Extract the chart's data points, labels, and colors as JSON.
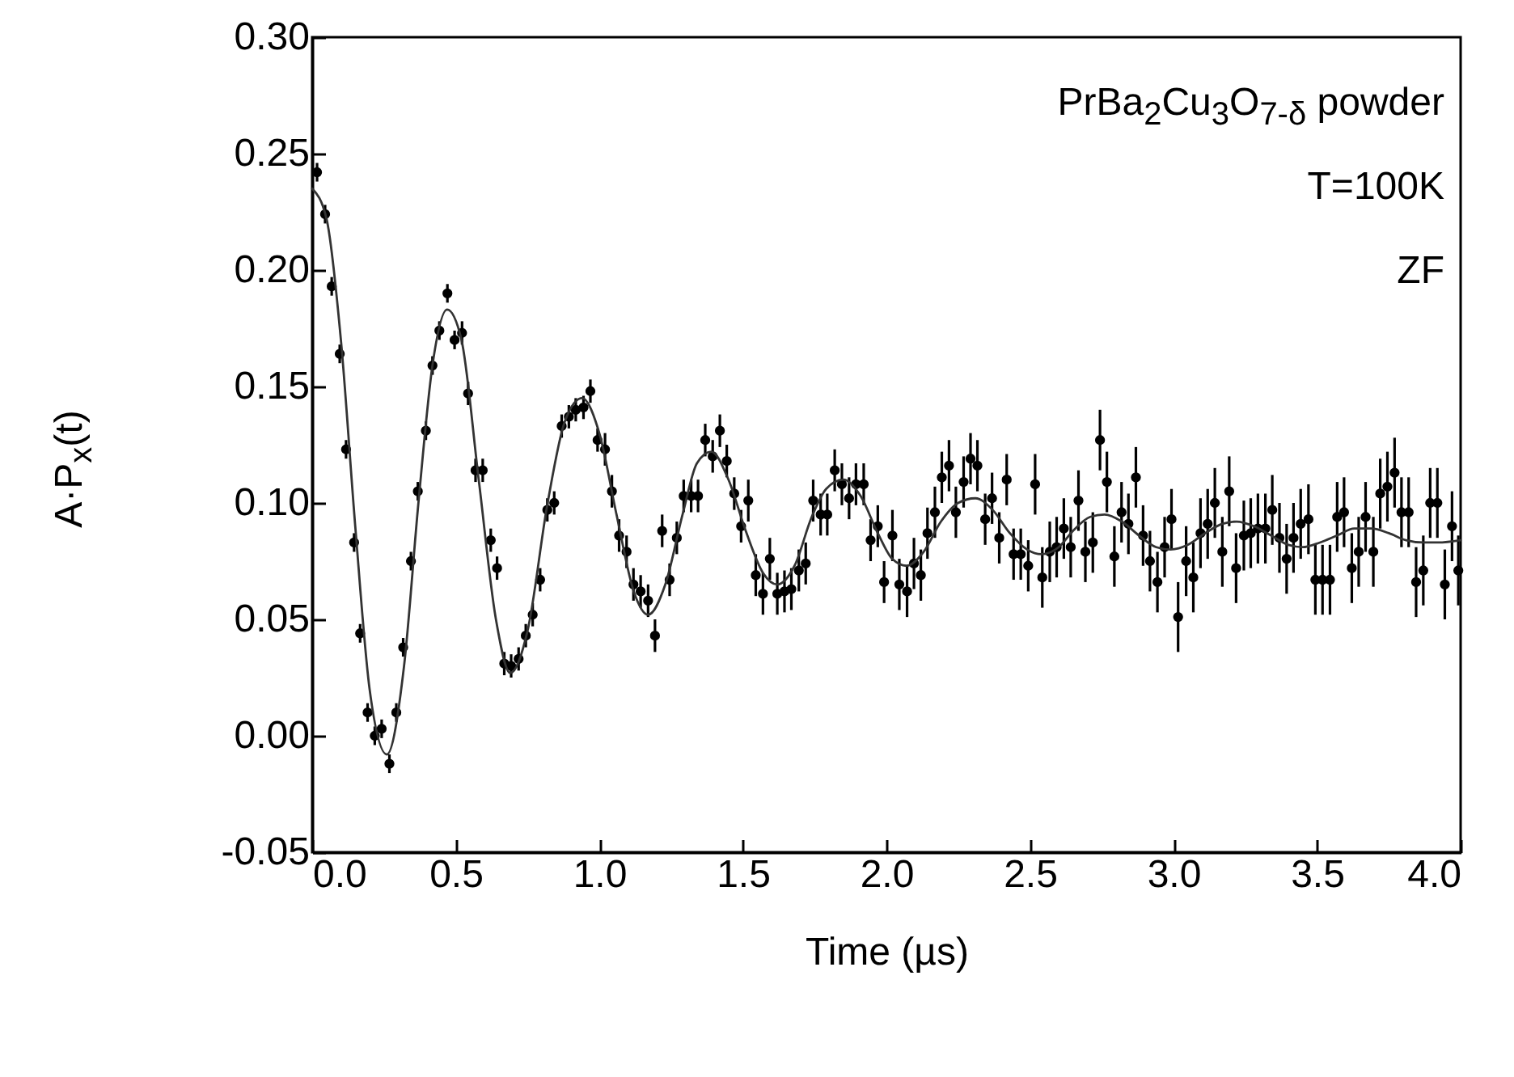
{
  "chart_data": {
    "type": "scatter",
    "xlabel": "Time (µs)",
    "ylabel": "A·P$_{x}$(t)",
    "annotations": [
      "PrBa$_{2}$Cu$_{3}$O$_{7-δ}$ powder",
      "T=100K",
      "ZF"
    ],
    "xlim": [
      0,
      4
    ],
    "ylim": [
      -0.05,
      0.3
    ],
    "xticks": [
      {
        "value": 0,
        "label": "0.0"
      },
      {
        "value": 0.5,
        "label": "0.5"
      },
      {
        "value": 1,
        "label": "1.0"
      },
      {
        "value": 1.5,
        "label": "1.5"
      },
      {
        "value": 2,
        "label": "2.0"
      },
      {
        "value": 2.5,
        "label": "2.5"
      },
      {
        "value": 3,
        "label": "3.0"
      },
      {
        "value": 3.5,
        "label": "3.5"
      },
      {
        "value": 4,
        "label": "4.0"
      }
    ],
    "yticks": [
      {
        "value": -0.05,
        "label": "-0.05"
      },
      {
        "value": 0,
        "label": "0.00"
      },
      {
        "value": 0.05,
        "label": "0.05"
      },
      {
        "value": 0.1,
        "label": "0.10"
      },
      {
        "value": 0.15,
        "label": "0.15"
      },
      {
        "value": 0.2,
        "label": "0.20"
      },
      {
        "value": 0.25,
        "label": "0.25"
      },
      {
        "value": 0.3,
        "label": "0.30"
      }
    ],
    "series": [
      {
        "marker": "circle",
        "color": "#000000",
        "x": [
          0.017,
          0.045,
          0.068,
          0.096,
          0.118,
          0.146,
          0.167,
          0.193,
          0.218,
          0.242,
          0.269,
          0.293,
          0.317,
          0.344,
          0.368,
          0.396,
          0.419,
          0.443,
          0.471,
          0.496,
          0.522,
          0.543,
          0.569,
          0.594,
          0.622,
          0.644,
          0.669,
          0.693,
          0.719,
          0.744,
          0.768,
          0.794,
          0.819,
          0.843,
          0.869,
          0.894,
          0.918,
          0.945,
          0.969,
          0.994,
          1.02,
          1.044,
          1.069,
          1.095,
          1.119,
          1.144,
          1.17,
          1.194,
          1.219,
          1.245,
          1.27,
          1.294,
          1.32,
          1.344,
          1.369,
          1.395,
          1.42,
          1.444,
          1.47,
          1.494,
          1.519,
          1.545,
          1.57,
          1.594,
          1.62,
          1.645,
          1.669,
          1.695,
          1.719,
          1.745,
          1.771,
          1.794,
          1.82,
          1.845,
          1.87,
          1.894,
          1.921,
          1.945,
          1.97,
          1.992,
          2.021,
          2.045,
          2.072,
          2.096,
          2.12,
          2.143,
          2.169,
          2.193,
          2.218,
          2.242,
          2.269,
          2.293,
          2.317,
          2.344,
          2.368,
          2.393,
          2.419,
          2.443,
          2.468,
          2.494,
          2.518,
          2.543,
          2.569,
          2.593,
          2.618,
          2.642,
          2.669,
          2.693,
          2.719,
          2.744,
          2.768,
          2.794,
          2.819,
          2.843,
          2.869,
          2.894,
          2.918,
          2.944,
          2.969,
          2.993,
          3.016,
          3.044,
          3.069,
          3.094,
          3.119,
          3.144,
          3.17,
          3.194,
          3.218,
          3.245,
          3.269,
          3.294,
          3.32,
          3.344,
          3.369,
          3.394,
          3.418,
          3.443,
          3.47,
          3.494,
          3.519,
          3.545,
          3.57,
          3.594,
          3.621,
          3.645,
          3.669,
          3.696,
          3.72,
          3.745,
          3.77,
          3.794,
          3.819,
          3.845,
          3.87,
          3.894,
          3.919,
          3.945,
          3.97,
          3.992
        ],
        "values": [
          0.242,
          0.224,
          0.193,
          0.164,
          0.123,
          0.083,
          0.044,
          0.01,
          0.0,
          0.003,
          -0.012,
          0.01,
          0.038,
          0.075,
          0.105,
          0.131,
          0.159,
          0.174,
          0.19,
          0.17,
          0.173,
          0.147,
          0.114,
          0.114,
          0.084,
          0.072,
          0.031,
          0.03,
          0.033,
          0.043,
          0.052,
          0.067,
          0.097,
          0.1,
          0.133,
          0.137,
          0.14,
          0.141,
          0.148,
          0.127,
          0.123,
          0.105,
          0.086,
          0.079,
          0.065,
          0.062,
          0.058,
          0.043,
          0.088,
          0.067,
          0.085,
          0.103,
          0.103,
          0.103,
          0.127,
          0.12,
          0.131,
          0.118,
          0.104,
          0.09,
          0.101,
          0.069,
          0.061,
          0.076,
          0.061,
          0.062,
          0.063,
          0.071,
          0.074,
          0.101,
          0.095,
          0.095,
          0.114,
          0.108,
          0.102,
          0.108,
          0.108,
          0.084,
          0.09,
          0.066,
          0.086,
          0.065,
          0.062,
          0.074,
          0.069,
          0.087,
          0.096,
          0.111,
          0.116,
          0.096,
          0.109,
          0.119,
          0.116,
          0.093,
          0.102,
          0.085,
          0.11,
          0.078,
          0.078,
          0.073,
          0.108,
          0.068,
          0.079,
          0.081,
          0.089,
          0.081,
          0.101,
          0.079,
          0.083,
          0.127,
          0.109,
          0.077,
          0.096,
          0.091,
          0.111,
          0.086,
          0.075,
          0.066,
          0.081,
          0.093,
          0.051,
          0.075,
          0.068,
          0.087,
          0.091,
          0.1,
          0.079,
          0.105,
          0.072,
          0.086,
          0.087,
          0.089,
          0.089,
          0.097,
          0.085,
          0.076,
          0.085,
          0.091,
          0.093,
          0.067,
          0.067,
          0.067,
          0.094,
          0.096,
          0.072,
          0.079,
          0.094,
          0.079,
          0.104,
          0.107,
          0.113,
          0.096,
          0.096,
          0.066,
          0.071,
          0.1,
          0.1,
          0.065,
          0.09,
          0.071
        ],
        "errors": [
          0.004,
          0.004,
          0.004,
          0.004,
          0.004,
          0.004,
          0.004,
          0.004,
          0.004,
          0.004,
          0.004,
          0.004,
          0.004,
          0.004,
          0.004,
          0.004,
          0.004,
          0.004,
          0.004,
          0.004,
          0.005,
          0.005,
          0.005,
          0.005,
          0.005,
          0.005,
          0.005,
          0.005,
          0.005,
          0.005,
          0.005,
          0.005,
          0.005,
          0.005,
          0.005,
          0.005,
          0.005,
          0.005,
          0.005,
          0.005,
          0.007,
          0.007,
          0.007,
          0.007,
          0.007,
          0.007,
          0.007,
          0.007,
          0.007,
          0.007,
          0.007,
          0.007,
          0.007,
          0.007,
          0.007,
          0.007,
          0.007,
          0.007,
          0.007,
          0.007,
          0.009,
          0.009,
          0.009,
          0.009,
          0.009,
          0.009,
          0.009,
          0.009,
          0.009,
          0.009,
          0.009,
          0.009,
          0.009,
          0.009,
          0.009,
          0.009,
          0.009,
          0.009,
          0.009,
          0.009,
          0.011,
          0.011,
          0.011,
          0.011,
          0.011,
          0.011,
          0.011,
          0.011,
          0.011,
          0.011,
          0.011,
          0.011,
          0.011,
          0.011,
          0.011,
          0.011,
          0.011,
          0.011,
          0.011,
          0.011,
          0.013,
          0.013,
          0.013,
          0.013,
          0.013,
          0.013,
          0.013,
          0.013,
          0.013,
          0.013,
          0.013,
          0.013,
          0.013,
          0.013,
          0.013,
          0.013,
          0.013,
          0.013,
          0.013,
          0.013,
          0.015,
          0.015,
          0.015,
          0.015,
          0.015,
          0.015,
          0.015,
          0.015,
          0.015,
          0.015,
          0.015,
          0.015,
          0.015,
          0.015,
          0.015,
          0.015,
          0.015,
          0.015,
          0.015,
          0.015,
          0.015,
          0.015,
          0.015,
          0.015,
          0.015,
          0.015,
          0.015,
          0.015,
          0.015,
          0.015,
          0.015,
          0.015,
          0.015,
          0.015,
          0.015,
          0.015,
          0.015,
          0.015,
          0.015,
          0.015
        ]
      },
      {
        "type": "line",
        "color": "#333333",
        "x": [
          0,
          0.05,
          0.1,
          0.15,
          0.2,
          0.26,
          0.32,
          0.37,
          0.42,
          0.47,
          0.52,
          0.58,
          0.64,
          0.69,
          0.75,
          0.82,
          0.88,
          0.94,
          1.0,
          1.06,
          1.12,
          1.17,
          1.23,
          1.29,
          1.34,
          1.39,
          1.45,
          1.51,
          1.57,
          1.62,
          1.68,
          1.74,
          1.79,
          1.85,
          1.91,
          1.97,
          2.02,
          2.07,
          2.13,
          2.19,
          2.25,
          2.31,
          2.37,
          2.43,
          2.49,
          2.54,
          2.6,
          2.65,
          2.71,
          2.76,
          2.82,
          2.88,
          2.94,
          2.99,
          3.05,
          3.11,
          3.17,
          3.22,
          3.28,
          3.34,
          3.4,
          3.45,
          3.51,
          3.57,
          3.63,
          3.69,
          3.75,
          3.81,
          3.87,
          3.92,
          4.0
        ],
        "values": [
          0.235,
          0.222,
          0.17,
          0.09,
          0.02,
          -0.008,
          0.03,
          0.1,
          0.16,
          0.183,
          0.17,
          0.11,
          0.05,
          0.027,
          0.045,
          0.1,
          0.135,
          0.145,
          0.13,
          0.095,
          0.062,
          0.052,
          0.065,
          0.095,
          0.117,
          0.122,
          0.11,
          0.088,
          0.07,
          0.065,
          0.073,
          0.094,
          0.106,
          0.11,
          0.103,
          0.087,
          0.076,
          0.073,
          0.079,
          0.092,
          0.1,
          0.102,
          0.097,
          0.087,
          0.08,
          0.078,
          0.081,
          0.088,
          0.094,
          0.095,
          0.092,
          0.086,
          0.081,
          0.08,
          0.082,
          0.087,
          0.091,
          0.092,
          0.09,
          0.086,
          0.082,
          0.081,
          0.083,
          0.086,
          0.089,
          0.089,
          0.087,
          0.084,
          0.083,
          0.083,
          0.084
        ]
      }
    ]
  }
}
